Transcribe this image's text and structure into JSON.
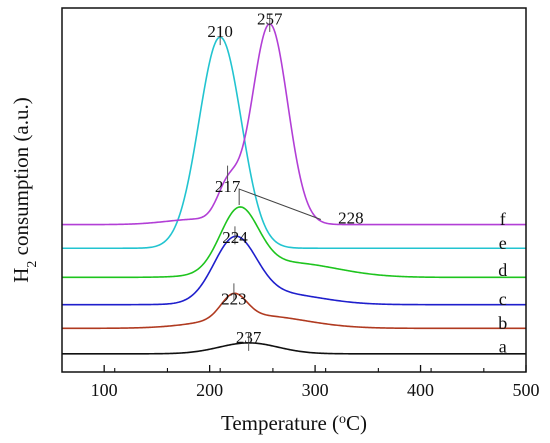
{
  "chart_data": {
    "type": "line",
    "title": "",
    "xlabel": "Temperature (",
    "xlabel_sup": "o",
    "xlabel_unit": "C)",
    "ylabel_pre": "H",
    "ylabel_sub": "2",
    "ylabel_post": " consumption (a.u.)",
    "xlim": [
      60,
      500
    ],
    "ylim": [
      0,
      100
    ],
    "xticks": [
      100,
      200,
      300,
      400,
      500
    ],
    "yticks_shown": false,
    "grid": false,
    "legend": "none",
    "series": [
      {
        "name": "a",
        "color": "#111111",
        "baseline": 5.0,
        "peaks": [
          [
            237,
            3.0,
            28
          ]
        ],
        "label_y": 7.0
      },
      {
        "name": "b",
        "color": "#b03a20",
        "baseline": 12.0,
        "peaks": [
          [
            223,
            6.5,
            12
          ],
          [
            245,
            3.5,
            45
          ]
        ],
        "label_y": 13.5
      },
      {
        "name": "c",
        "color": "#1f1fcc",
        "baseline": 18.5,
        "peaks": [
          [
            224,
            17.0,
            20
          ],
          [
            265,
            3.0,
            40
          ]
        ],
        "label_y": 20.0
      },
      {
        "name": "d",
        "color": "#1ec41e",
        "baseline": 26.0,
        "peaks": [
          [
            228,
            17.0,
            18
          ],
          [
            275,
            4.0,
            45
          ]
        ],
        "label_y": 28.0
      },
      {
        "name": "e",
        "color": "#22c4d0",
        "baseline": 34.0,
        "peaks": [
          [
            210,
            58.0,
            20
          ]
        ],
        "label_y": 35.5
      },
      {
        "name": "f",
        "color": "#b23fd6",
        "baseline": 40.5,
        "peaks": [
          [
            217,
            9.0,
            10
          ],
          [
            257,
            55.0,
            17
          ],
          [
            190,
            1.5,
            30
          ]
        ],
        "label_y": 42.0
      }
    ],
    "peak_annotations": [
      {
        "label": "210",
        "series": "e",
        "x": 210,
        "y": 92.0
      },
      {
        "label": "257",
        "series": "f",
        "x": 257,
        "y": 95.5
      },
      {
        "label": "217",
        "series": "f",
        "x": 217,
        "y": 49.5
      },
      {
        "label": "228",
        "series": "d",
        "x": 228,
        "y": 43.0
      },
      {
        "label": "224",
        "series": "c",
        "x": 224,
        "y": 35.5
      },
      {
        "label": "223",
        "series": "b",
        "x": 223,
        "y": 18.5
      },
      {
        "label": "237",
        "series": "a",
        "x": 237,
        "y": 8.0
      }
    ]
  }
}
